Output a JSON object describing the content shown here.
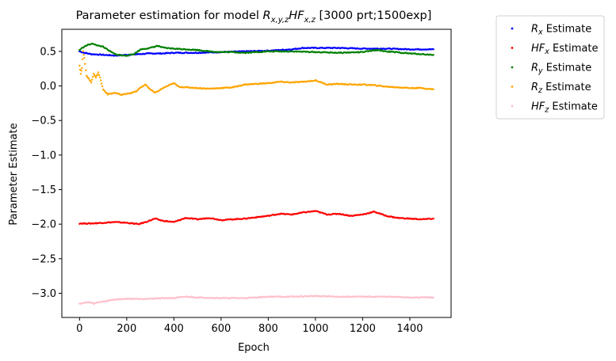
{
  "chart_data": {
    "type": "scatter",
    "title": "Parameter estimation for model R_{x,y,z}HF_{x,z} [3000 prt;1500exp]",
    "title_parts": {
      "prefix": "Parameter estimation for model ",
      "m1": "R",
      "m1_sub": "x,y,z",
      "m2": "HF",
      "m2_sub": "x,z",
      "suffix": " [3000 prt;1500exp]"
    },
    "xlabel": "Epoch",
    "ylabel": "Parameter Estimate",
    "xlim": [
      -75,
      1575
    ],
    "ylim": [
      -3.35,
      0.82
    ],
    "xticks": [
      0,
      200,
      400,
      600,
      800,
      1000,
      1200,
      1400
    ],
    "yticks": [
      0.5,
      0.0,
      -0.5,
      -1.0,
      -1.5,
      -2.0,
      -2.5,
      -3.0
    ],
    "ytick_labels": [
      "0.5",
      "0.0",
      "−0.5",
      "−1.0",
      "−1.5",
      "−2.0",
      "−2.5",
      "−3.0"
    ],
    "grid": false,
    "legend_position": "outside-right-top",
    "series": [
      {
        "name": "R_x Estimate",
        "label_main": "R",
        "label_sub": "x",
        "color": "#0000ff",
        "points": [
          [
            0,
            0.5
          ],
          [
            20,
            0.48
          ],
          [
            50,
            0.46
          ],
          [
            100,
            0.45
          ],
          [
            150,
            0.44
          ],
          [
            200,
            0.45
          ],
          [
            250,
            0.46
          ],
          [
            300,
            0.47
          ],
          [
            350,
            0.47
          ],
          [
            400,
            0.48
          ],
          [
            450,
            0.48
          ],
          [
            500,
            0.48
          ],
          [
            600,
            0.49
          ],
          [
            700,
            0.5
          ],
          [
            800,
            0.51
          ],
          [
            900,
            0.53
          ],
          [
            950,
            0.55
          ],
          [
            1000,
            0.55
          ],
          [
            1100,
            0.55
          ],
          [
            1200,
            0.54
          ],
          [
            1300,
            0.54
          ],
          [
            1400,
            0.53
          ],
          [
            1500,
            0.53
          ]
        ]
      },
      {
        "name": "HF_x Estimate",
        "label_main": "HF",
        "label_sub": "x",
        "color": "#ff0000",
        "points": [
          [
            0,
            -1.99
          ],
          [
            50,
            -1.99
          ],
          [
            100,
            -1.98
          ],
          [
            150,
            -1.97
          ],
          [
            200,
            -1.98
          ],
          [
            250,
            -2.0
          ],
          [
            280,
            -1.97
          ],
          [
            320,
            -1.92
          ],
          [
            350,
            -1.95
          ],
          [
            400,
            -1.97
          ],
          [
            450,
            -1.91
          ],
          [
            500,
            -1.93
          ],
          [
            550,
            -1.91
          ],
          [
            600,
            -1.94
          ],
          [
            650,
            -1.93
          ],
          [
            700,
            -1.92
          ],
          [
            750,
            -1.9
          ],
          [
            800,
            -1.88
          ],
          [
            850,
            -1.85
          ],
          [
            900,
            -1.86
          ],
          [
            950,
            -1.83
          ],
          [
            1000,
            -1.81
          ],
          [
            1050,
            -1.86
          ],
          [
            1100,
            -1.85
          ],
          [
            1150,
            -1.88
          ],
          [
            1200,
            -1.86
          ],
          [
            1250,
            -1.82
          ],
          [
            1300,
            -1.88
          ],
          [
            1350,
            -1.91
          ],
          [
            1400,
            -1.92
          ],
          [
            1450,
            -1.93
          ],
          [
            1500,
            -1.92
          ]
        ]
      },
      {
        "name": "R_y Estimate",
        "label_main": "R",
        "label_sub": "y",
        "color": "#008000",
        "points": [
          [
            0,
            0.52
          ],
          [
            20,
            0.57
          ],
          [
            40,
            0.6
          ],
          [
            60,
            0.61
          ],
          [
            80,
            0.58
          ],
          [
            100,
            0.57
          ],
          [
            120,
            0.52
          ],
          [
            150,
            0.46
          ],
          [
            180,
            0.44
          ],
          [
            200,
            0.44
          ],
          [
            230,
            0.46
          ],
          [
            260,
            0.53
          ],
          [
            300,
            0.55
          ],
          [
            330,
            0.58
          ],
          [
            360,
            0.55
          ],
          [
            400,
            0.54
          ],
          [
            450,
            0.53
          ],
          [
            500,
            0.52
          ],
          [
            550,
            0.5
          ],
          [
            600,
            0.49
          ],
          [
            650,
            0.49
          ],
          [
            700,
            0.48
          ],
          [
            800,
            0.5
          ],
          [
            900,
            0.5
          ],
          [
            1000,
            0.49
          ],
          [
            1100,
            0.48
          ],
          [
            1200,
            0.49
          ],
          [
            1260,
            0.52
          ],
          [
            1300,
            0.5
          ],
          [
            1400,
            0.47
          ],
          [
            1500,
            0.45
          ]
        ]
      },
      {
        "name": "R_z Estimate",
        "label_main": "R",
        "label_sub": "z",
        "color": "#ffa500",
        "points": [
          [
            0,
            0.3
          ],
          [
            5,
            0.18
          ],
          [
            10,
            0.26
          ],
          [
            15,
            0.5
          ],
          [
            20,
            0.4
          ],
          [
            30,
            0.15
          ],
          [
            40,
            0.1
          ],
          [
            50,
            0.05
          ],
          [
            60,
            0.18
          ],
          [
            70,
            0.12
          ],
          [
            80,
            0.2
          ],
          [
            90,
            0.08
          ],
          [
            100,
            -0.05
          ],
          [
            120,
            -0.12
          ],
          [
            150,
            -0.1
          ],
          [
            180,
            -0.13
          ],
          [
            200,
            -0.11
          ],
          [
            220,
            -0.1
          ],
          [
            240,
            -0.08
          ],
          [
            260,
            -0.02
          ],
          [
            280,
            0.02
          ],
          [
            300,
            -0.05
          ],
          [
            320,
            -0.1
          ],
          [
            340,
            -0.06
          ],
          [
            360,
            -0.02
          ],
          [
            380,
            0.01
          ],
          [
            400,
            0.04
          ],
          [
            420,
            -0.01
          ],
          [
            450,
            -0.02
          ],
          [
            500,
            -0.03
          ],
          [
            550,
            -0.04
          ],
          [
            600,
            -0.03
          ],
          [
            650,
            -0.02
          ],
          [
            700,
            0.02
          ],
          [
            750,
            0.03
          ],
          [
            800,
            0.04
          ],
          [
            850,
            0.06
          ],
          [
            900,
            0.05
          ],
          [
            950,
            0.06
          ],
          [
            1000,
            0.08
          ],
          [
            1050,
            0.02
          ],
          [
            1100,
            0.03
          ],
          [
            1150,
            0.02
          ],
          [
            1200,
            0.02
          ],
          [
            1250,
            0.01
          ],
          [
            1300,
            -0.01
          ],
          [
            1350,
            -0.02
          ],
          [
            1400,
            -0.03
          ],
          [
            1450,
            -0.03
          ],
          [
            1500,
            -0.05
          ]
        ]
      },
      {
        "name": "HF_z Estimate",
        "label_main": "HF",
        "label_sub": "z",
        "color": "#ffc0cb",
        "points": [
          [
            0,
            -3.15
          ],
          [
            20,
            -3.14
          ],
          [
            40,
            -3.13
          ],
          [
            60,
            -3.15
          ],
          [
            80,
            -3.13
          ],
          [
            100,
            -3.12
          ],
          [
            150,
            -3.09
          ],
          [
            200,
            -3.08
          ],
          [
            250,
            -3.08
          ],
          [
            300,
            -3.08
          ],
          [
            350,
            -3.07
          ],
          [
            400,
            -3.07
          ],
          [
            450,
            -3.05
          ],
          [
            500,
            -3.06
          ],
          [
            600,
            -3.07
          ],
          [
            700,
            -3.07
          ],
          [
            800,
            -3.05
          ],
          [
            900,
            -3.05
          ],
          [
            1000,
            -3.04
          ],
          [
            1100,
            -3.05
          ],
          [
            1200,
            -3.05
          ],
          [
            1300,
            -3.05
          ],
          [
            1400,
            -3.06
          ],
          [
            1500,
            -3.06
          ]
        ]
      }
    ]
  }
}
